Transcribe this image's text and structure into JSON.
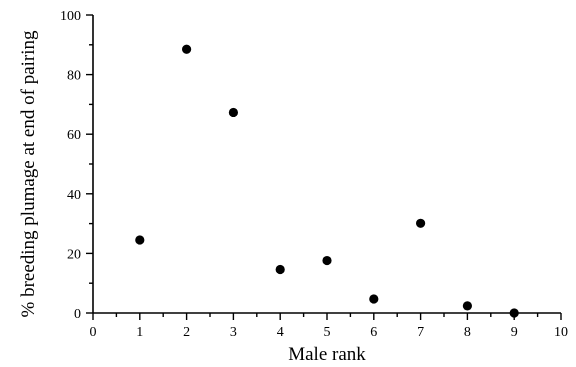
{
  "chart_data": {
    "type": "scatter",
    "title": "",
    "xlabel": "Male rank",
    "ylabel": "% breeding plumage at end of pairing",
    "xlim": [
      0,
      10
    ],
    "ylim": [
      0,
      100
    ],
    "x_ticks": [
      0,
      1,
      2,
      3,
      4,
      5,
      6,
      7,
      8,
      9,
      10
    ],
    "y_ticks": [
      0,
      20,
      40,
      60,
      80,
      100
    ],
    "x_minor_step": 0.5,
    "y_minor_step": 10,
    "grid": false,
    "marker_color": "#000000",
    "series": [
      {
        "x": [
          1,
          2,
          3,
          4,
          5,
          6,
          7,
          8,
          9
        ],
        "y": [
          24.5,
          88.5,
          67.3,
          14.6,
          17.6,
          4.7,
          30.1,
          2.4,
          0
        ]
      }
    ]
  }
}
